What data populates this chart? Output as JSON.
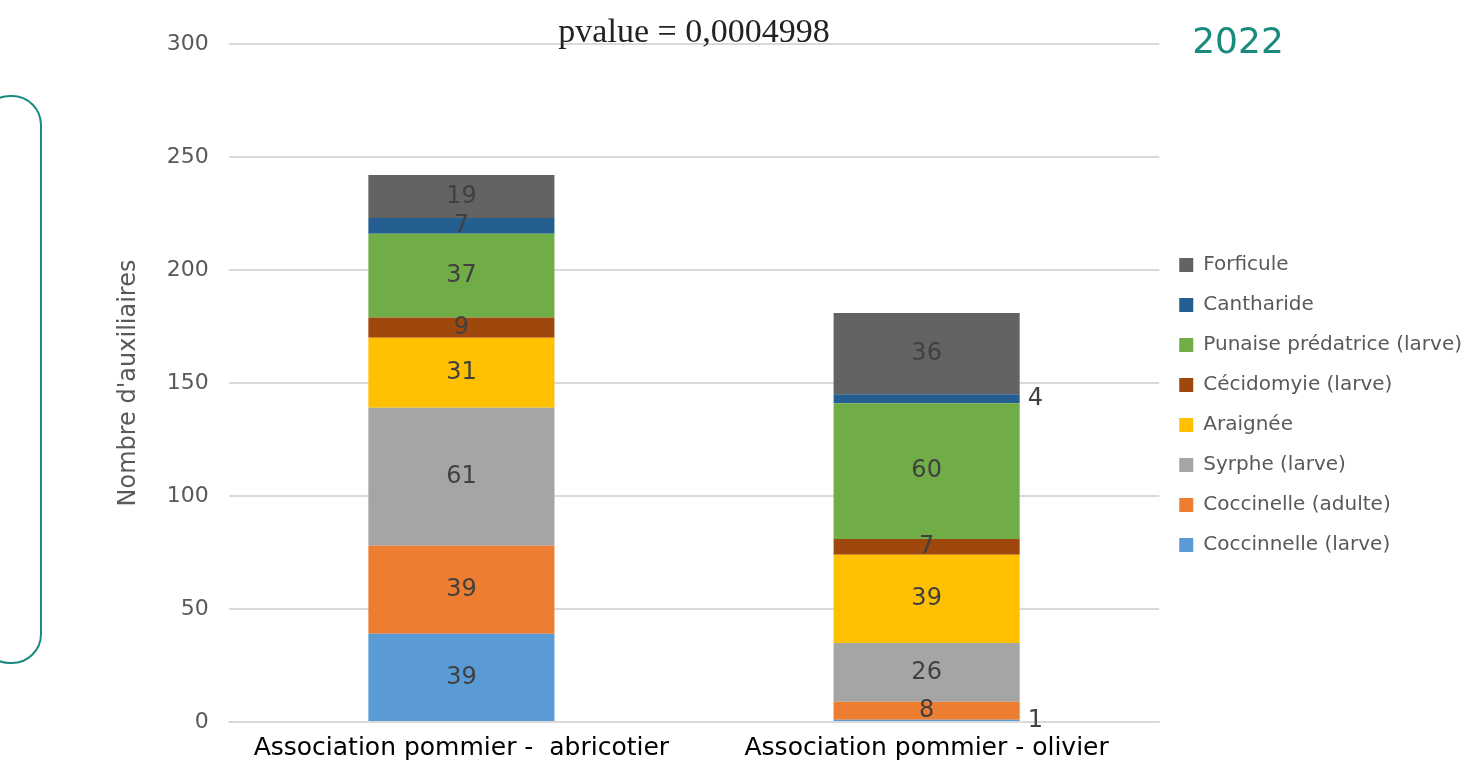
{
  "chart_data": {
    "type": "bar",
    "stacked": true,
    "ylabel": "Nombre d'auxiliaires",
    "categories": [
      "Association pommier -  abricotier",
      "Association pommier - olivier"
    ],
    "series": [
      {
        "name": "Coccinnelle (larve)",
        "color": "#5b9bd5",
        "values": [
          39,
          1
        ]
      },
      {
        "name": "Coccinelle (adulte)",
        "color": "#ed7d31",
        "values": [
          39,
          8
        ]
      },
      {
        "name": "Syrphe (larve)",
        "color": "#a5a5a5",
        "values": [
          61,
          26
        ]
      },
      {
        "name": "Araignée",
        "color": "#ffc000",
        "values": [
          31,
          39
        ]
      },
      {
        "name": "Cécidomyie (larve)",
        "color": "#9e480e",
        "values": [
          9,
          7
        ]
      },
      {
        "name": "Punaise prédatrice (larve)",
        "color": "#70ad47",
        "values": [
          37,
          60
        ]
      },
      {
        "name": "Cantharide",
        "color": "#255e91",
        "values": [
          7,
          4
        ]
      },
      {
        "name": "Forficule",
        "color": "#636363",
        "values": [
          19,
          36
        ]
      }
    ],
    "ylim": [
      0,
      300
    ],
    "yticks": [
      0,
      50,
      100,
      150,
      200,
      250,
      300
    ],
    "grid": "y",
    "legend": "right",
    "data_labels": true,
    "annotations": [
      "pvalue = 0,0004998",
      "2022"
    ]
  }
}
